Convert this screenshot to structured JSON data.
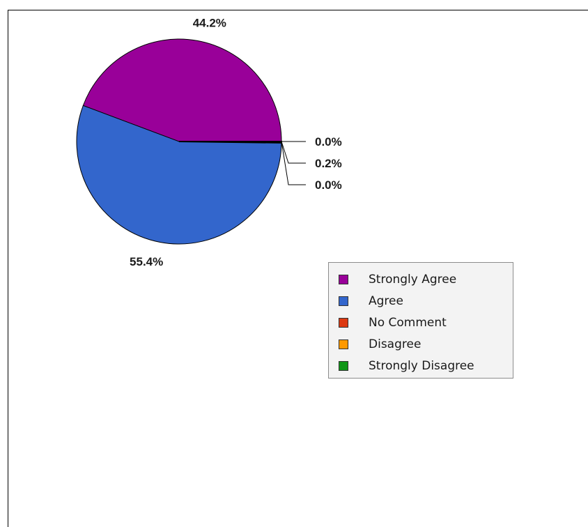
{
  "chart_data": {
    "type": "pie",
    "title": "",
    "slices": [
      {
        "label": "Strongly Agree",
        "value": 44.2,
        "display": "44.2%",
        "color": "#990099"
      },
      {
        "label": "Agree",
        "value": 55.4,
        "display": "55.4%",
        "color": "#3366cc"
      },
      {
        "label": "No Comment",
        "value": 0.0,
        "display": "0.0%",
        "color": "#dc3912"
      },
      {
        "label": "Disagree",
        "value": 0.2,
        "display": "0.2%",
        "color": "#ff9900"
      },
      {
        "label": "Strongly Disagree",
        "value": 0.0,
        "display": "0.0%",
        "color": "#109618"
      }
    ],
    "legend_position": "bottom-right"
  }
}
